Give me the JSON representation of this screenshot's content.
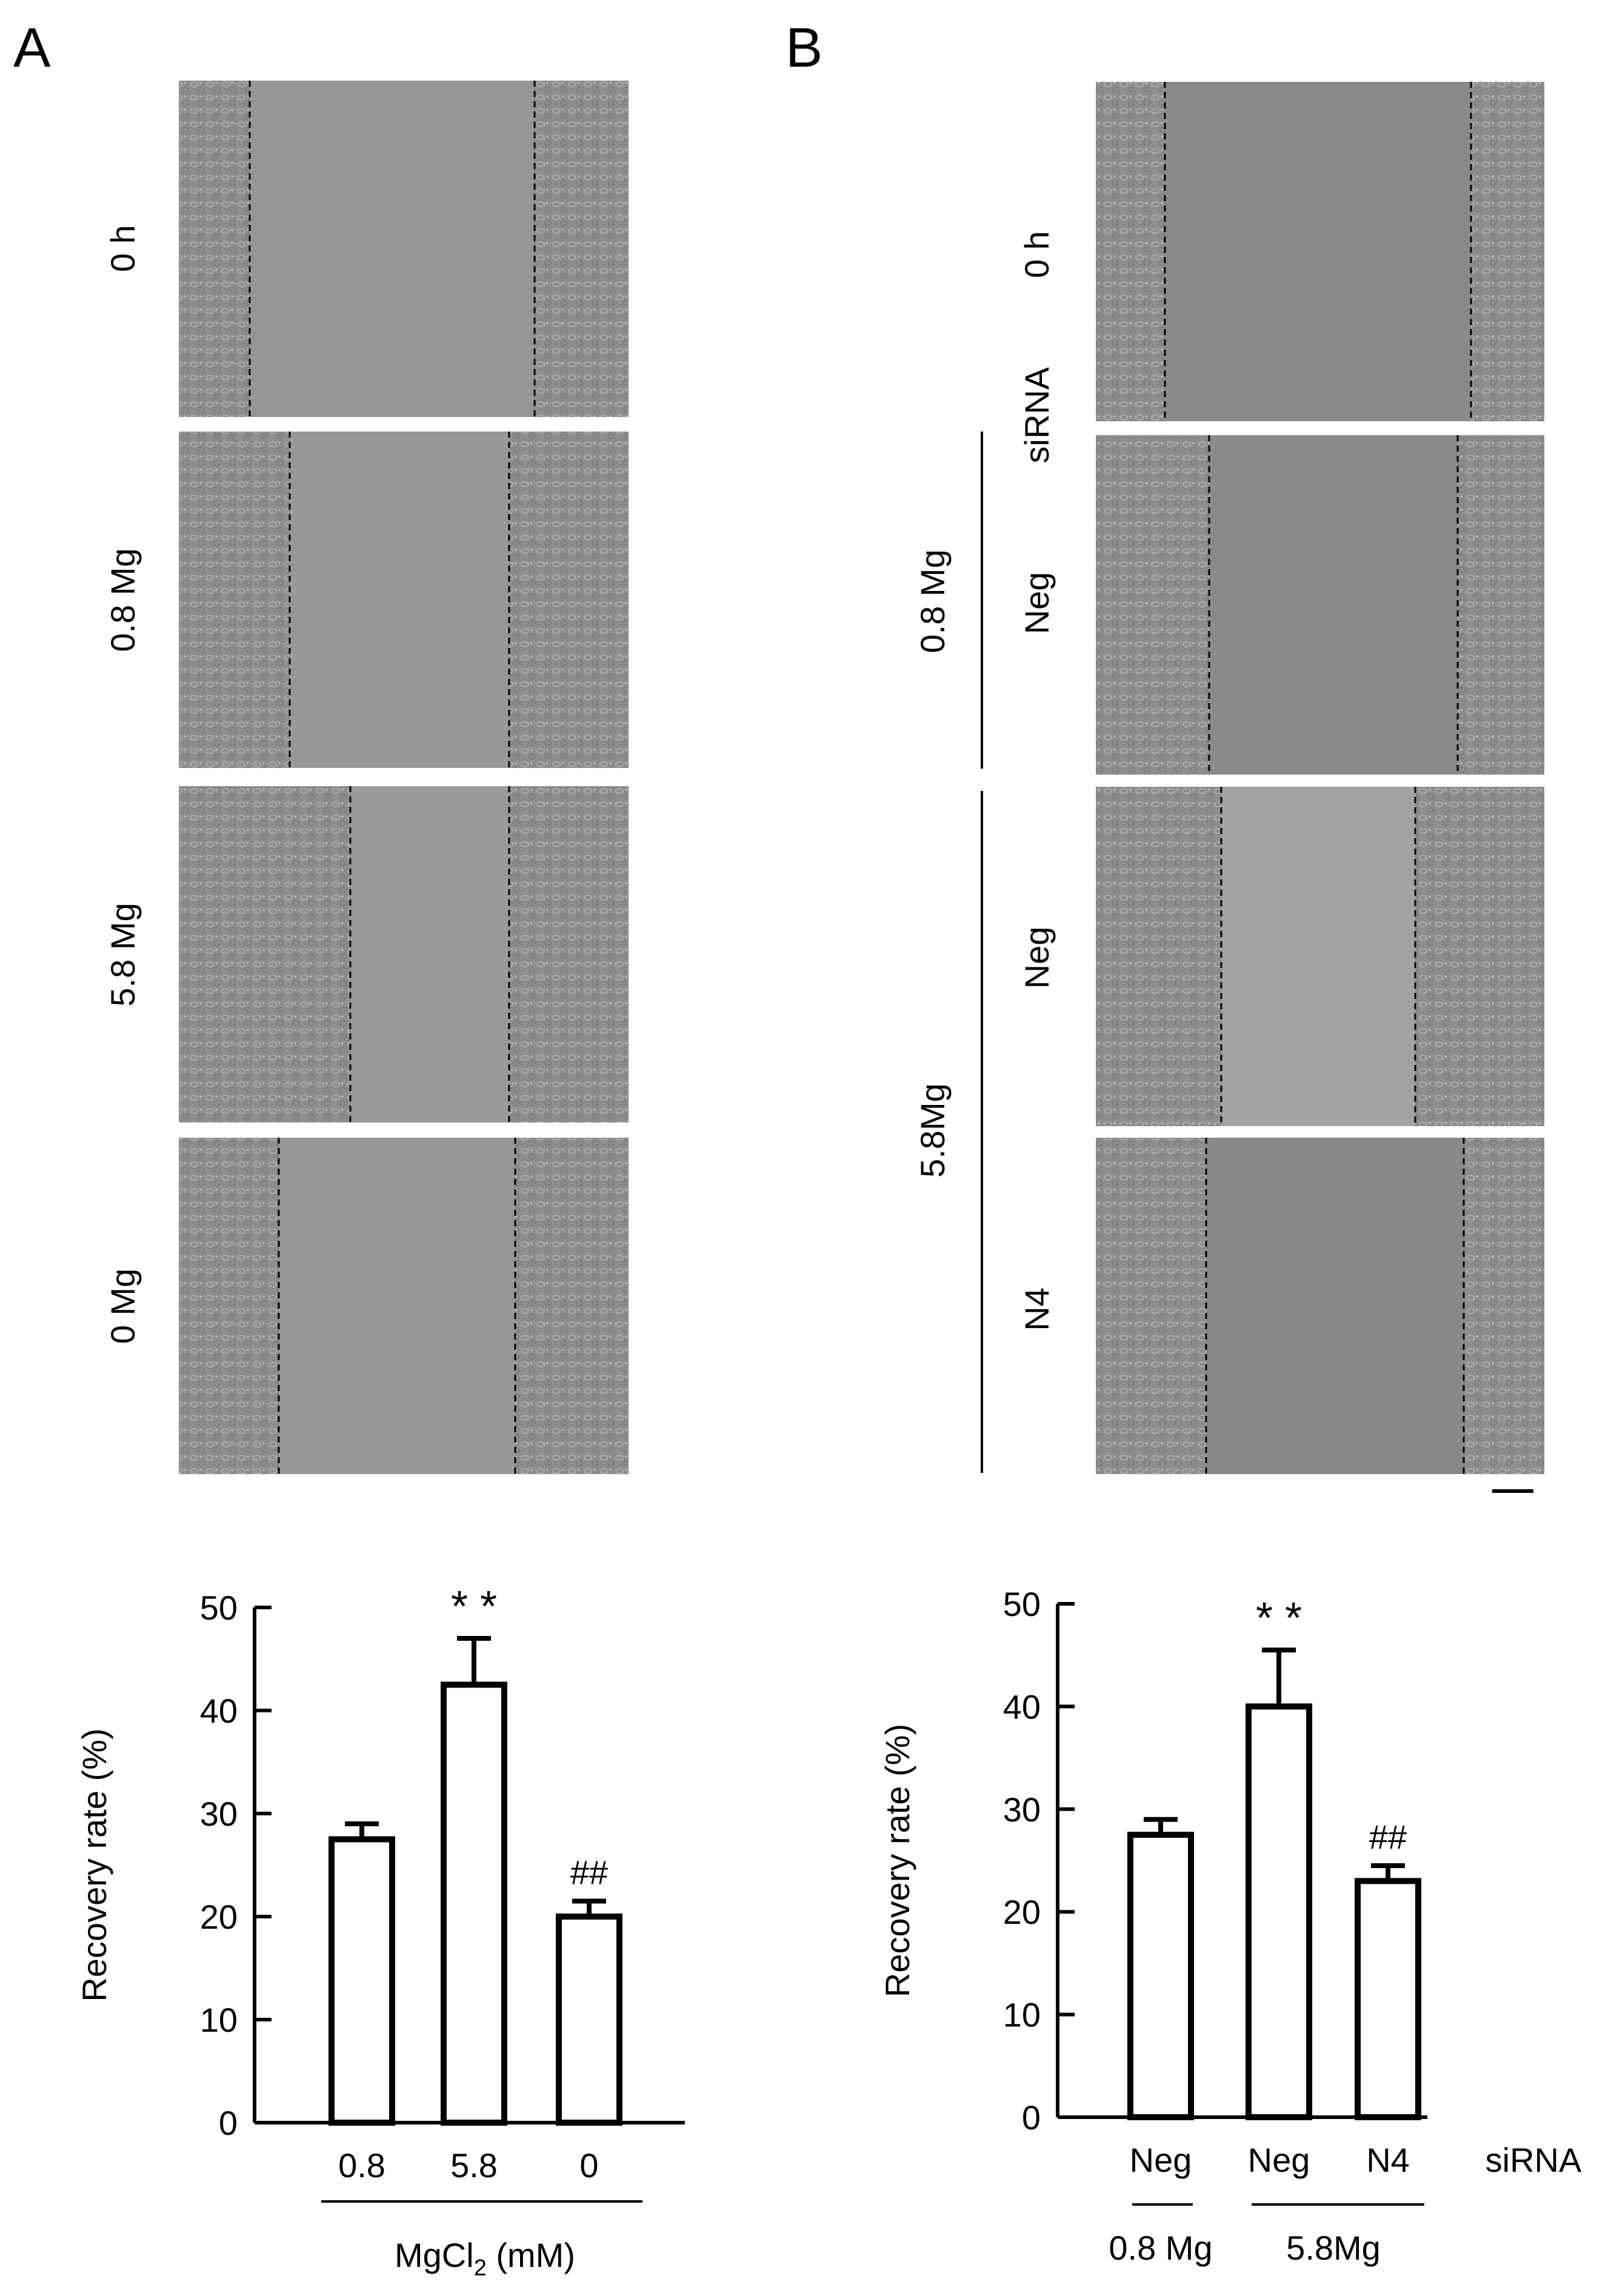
{
  "panel_a": {
    "letter": "A",
    "micrograph_labels": [
      "0 h",
      "0.8 Mg",
      "5.8 Mg",
      "0 Mg"
    ]
  },
  "panel_b": {
    "letter": "B",
    "micrograph_labels": [
      "0 h",
      "Neg",
      "Neg",
      "N4"
    ],
    "sirna_label": "siRNA",
    "group_labels": [
      "0.8 Mg",
      "5.8Mg"
    ],
    "scale_bar_present": true
  },
  "colors": {
    "micrograph_bg": "#8d8d8d",
    "micrograph_cells": "#a9a9a9",
    "micrograph_gap": "#969696",
    "bar_fill": "#ffffff",
    "ink": "#000000"
  },
  "chart_data": [
    {
      "type": "bar",
      "panel": "A",
      "categories": [
        "0.8",
        "5.8",
        "0"
      ],
      "values": [
        27.5,
        42.5,
        20
      ],
      "errors": [
        1.5,
        4.5,
        1.5
      ],
      "annotations": [
        "",
        "**",
        "##"
      ],
      "ylabel": "Recovery rate (%)",
      "xlabel": "MgCl2 (mM)",
      "xlabel_parts": [
        "MgCl",
        "2",
        " (mM)"
      ],
      "ylim": [
        0,
        50
      ],
      "yticks": [
        0,
        10,
        20,
        30,
        40,
        50
      ],
      "grid": false
    },
    {
      "type": "bar",
      "panel": "B",
      "categories": [
        "Neg",
        "Neg",
        "N4"
      ],
      "values": [
        27.5,
        40,
        23
      ],
      "errors": [
        1.5,
        5.5,
        1.5
      ],
      "annotations": [
        "",
        "**",
        "##"
      ],
      "ylabel": "Recovery rate (%)",
      "category_suffix": "siRNA",
      "groups": [
        {
          "label": "0.8 Mg",
          "span": [
            0,
            0
          ]
        },
        {
          "label": "5.8Mg",
          "span": [
            1,
            2
          ]
        }
      ],
      "ylim": [
        0,
        50
      ],
      "yticks": [
        0,
        10,
        20,
        30,
        40,
        50
      ],
      "grid": false
    }
  ]
}
